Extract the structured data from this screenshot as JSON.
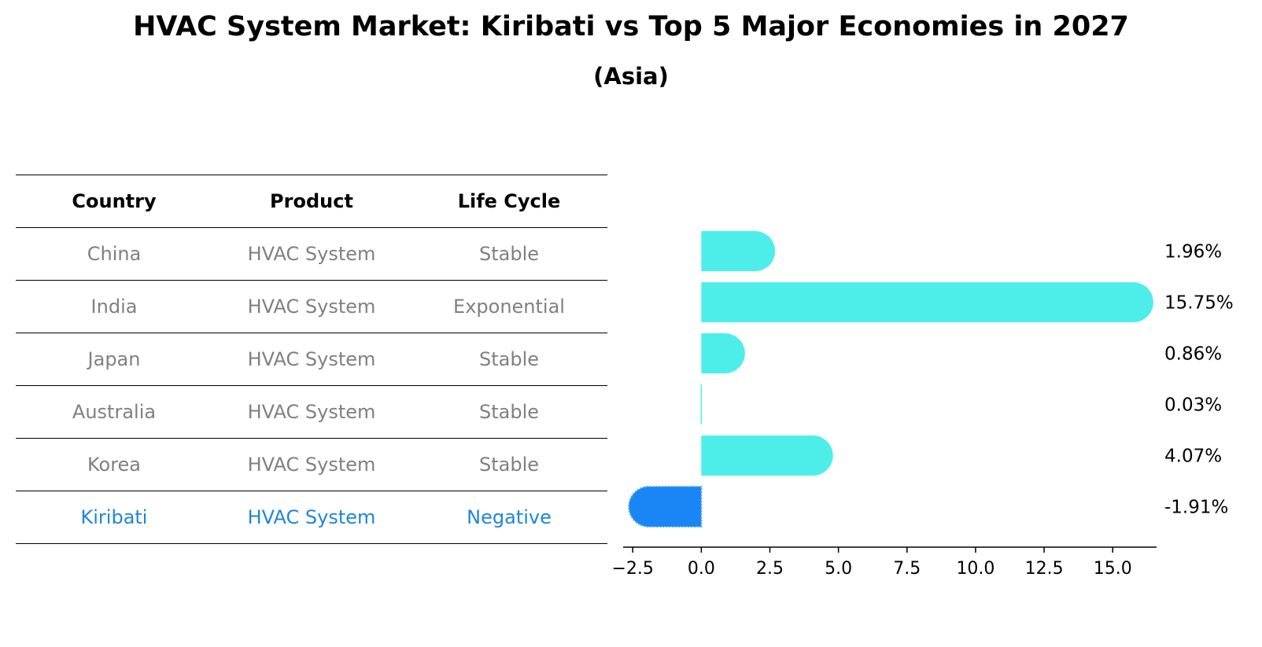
{
  "title": "HVAC System Market: Kiribati vs Top 5 Major Economies in 2027",
  "subtitle": "(Asia)",
  "table": {
    "headers": [
      "Country",
      "Product",
      "Life Cycle"
    ],
    "rows": [
      {
        "country": "China",
        "product": "HVAC System",
        "life_cycle": "Stable"
      },
      {
        "country": "India",
        "product": "HVAC System",
        "life_cycle": "Exponential"
      },
      {
        "country": "Japan",
        "product": "HVAC System",
        "life_cycle": "Stable"
      },
      {
        "country": "Australia",
        "product": "HVAC System",
        "life_cycle": "Stable"
      },
      {
        "country": "Korea",
        "product": "HVAC System",
        "life_cycle": "Stable"
      },
      {
        "country": "Kiribati",
        "product": "HVAC System",
        "life_cycle": "Negative"
      }
    ],
    "highlight_country": "Kiribati"
  },
  "colors": {
    "positive": "#4deeea",
    "negative": "#1a86f5",
    "highlight_text": "#1f87d6",
    "muted_text": "#808080"
  },
  "chart_data": {
    "type": "bar",
    "orientation": "horizontal",
    "categories": [
      "China",
      "India",
      "Japan",
      "Australia",
      "Korea",
      "Kiribati"
    ],
    "values": [
      1.96,
      15.75,
      0.86,
      0.03,
      4.07,
      -1.91
    ],
    "value_labels": [
      "1.96%",
      "15.75%",
      "0.86%",
      "0.03%",
      "4.07%",
      "-1.91%"
    ],
    "xlim": [
      -2.85,
      16.6
    ],
    "xticks": [
      -2.5,
      0.0,
      2.5,
      5.0,
      7.5,
      10.0,
      12.5,
      15.0
    ],
    "xtick_labels": [
      "−2.5",
      "0.0",
      "2.5",
      "5.0",
      "7.5",
      "10.0",
      "12.5",
      "15.0"
    ],
    "grid": false
  }
}
